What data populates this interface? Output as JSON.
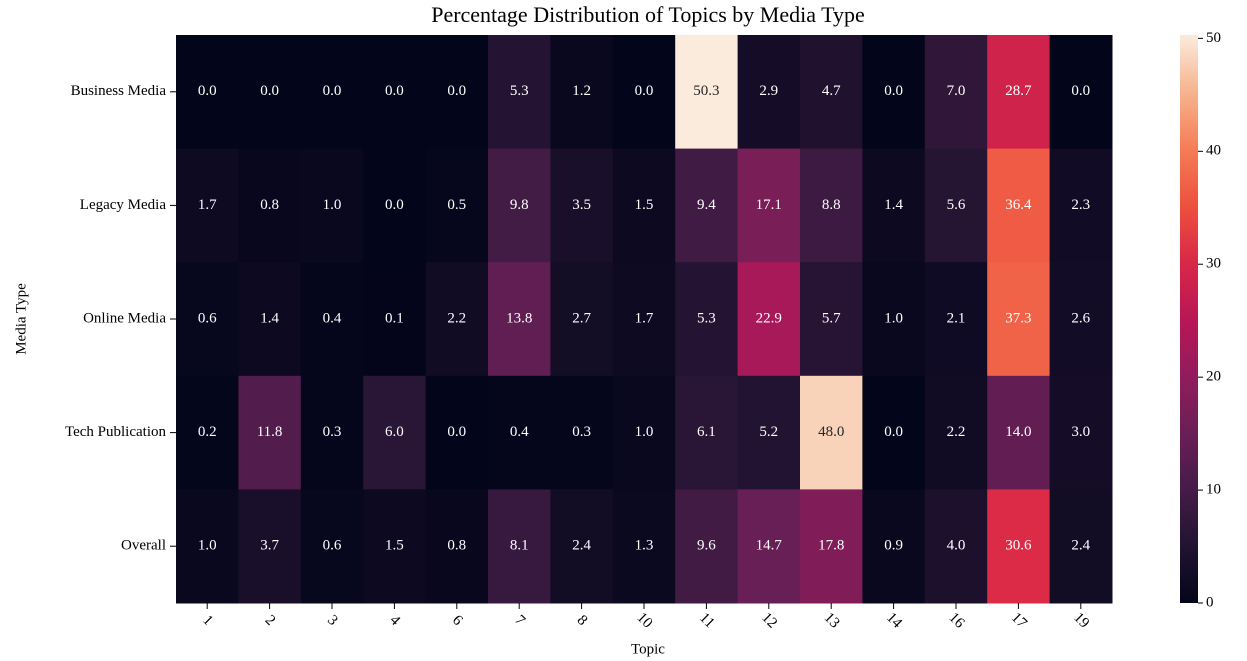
{
  "chart_data": {
    "type": "heatmap",
    "title": "Percentage Distribution of Topics by Media Type",
    "xlabel": "Topic",
    "ylabel": "Media Type",
    "categories": [
      "1",
      "2",
      "3",
      "4",
      "6",
      "7",
      "8",
      "10",
      "11",
      "12",
      "13",
      "14",
      "16",
      "17",
      "19"
    ],
    "rows": [
      "Business Media",
      "Legacy Media",
      "Online Media",
      "Tech Publication",
      "Overall"
    ],
    "values": [
      [
        0,
        0,
        0,
        0,
        0,
        5.3,
        1.2,
        0,
        50.3,
        2.9,
        4.7,
        0,
        7,
        28.7,
        0
      ],
      [
        1.7,
        0.8,
        1,
        0,
        0.5,
        9.8,
        3.5,
        1.5,
        9.4,
        17.1,
        8.8,
        1.4,
        5.6,
        36.4,
        2.3
      ],
      [
        0.6,
        1.4,
        0.4,
        0.1,
        2.2,
        13.8,
        2.7,
        1.7,
        5.3,
        22.9,
        5.7,
        1,
        2.1,
        37.3,
        2.6
      ],
      [
        0.2,
        11.8,
        0.3,
        6,
        0,
        0.4,
        0.3,
        1,
        6.1,
        5.2,
        48,
        0,
        2.2,
        14,
        3
      ],
      [
        1,
        3.7,
        0.6,
        1.5,
        0.8,
        8.1,
        2.4,
        1.3,
        9.6,
        14.7,
        17.8,
        0.9,
        4,
        30.6,
        2.4
      ]
    ],
    "value_labels": [
      [
        "0.0",
        "0.0",
        "0.0",
        "0.0",
        "0.0",
        "5.3",
        "1.2",
        "0.0",
        "50.3",
        "2.9",
        "4.7",
        "0.0",
        "7.0",
        "28.7",
        "0.0"
      ],
      [
        "1.7",
        "0.8",
        "1.0",
        "0.0",
        "0.5",
        "9.8",
        "3.5",
        "1.5",
        "9.4",
        "17.1",
        "8.8",
        "1.4",
        "5.6",
        "36.4",
        "2.3"
      ],
      [
        "0.6",
        "1.4",
        "0.4",
        "0.1",
        "2.2",
        "13.8",
        "2.7",
        "1.7",
        "5.3",
        "22.9",
        "5.7",
        "1.0",
        "2.1",
        "37.3",
        "2.6"
      ],
      [
        "0.2",
        "11.8",
        "0.3",
        "6.0",
        "0.0",
        "0.4",
        "0.3",
        "1.0",
        "6.1",
        "5.2",
        "48.0",
        "0.0",
        "2.2",
        "14.0",
        "3.0"
      ],
      [
        "1.0",
        "3.7",
        "0.6",
        "1.5",
        "0.8",
        "8.1",
        "2.4",
        "1.3",
        "9.6",
        "14.7",
        "17.8",
        "0.9",
        "4.0",
        "30.6",
        "2.4"
      ]
    ],
    "colormap": "rocket",
    "zlim": [
      0,
      50.3
    ],
    "zticks": [
      0,
      10,
      20,
      30,
      40,
      50
    ]
  }
}
